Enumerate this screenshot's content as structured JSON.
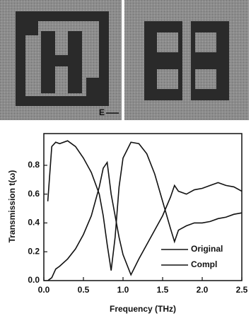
{
  "figure": {
    "field_label": "E"
  },
  "chart_data": {
    "type": "line",
    "xlabel": "Frequency (THz)",
    "ylabel": "Transmission  t(ω)",
    "x": [
      0.05,
      0.1,
      0.15,
      0.2,
      0.3,
      0.4,
      0.5,
      0.6,
      0.7,
      0.75,
      0.8,
      0.85,
      0.9,
      0.95,
      1.0,
      1.1,
      1.2,
      1.3,
      1.4,
      1.5,
      1.6,
      1.65,
      1.7,
      1.8,
      1.9,
      2.0,
      2.1,
      2.2,
      2.3,
      2.4,
      2.5
    ],
    "series": [
      {
        "name": "Original",
        "color": "#111111",
        "values": [
          0.55,
          0.93,
          0.96,
          0.95,
          0.97,
          0.93,
          0.85,
          0.75,
          0.6,
          0.45,
          0.25,
          0.07,
          0.3,
          0.65,
          0.85,
          0.96,
          0.95,
          0.88,
          0.74,
          0.55,
          0.36,
          0.27,
          0.35,
          0.38,
          0.4,
          0.4,
          0.41,
          0.43,
          0.44,
          0.46,
          0.47
        ]
      },
      {
        "name": "Compl",
        "color": "#111111",
        "values": [
          0.0,
          0.02,
          0.08,
          0.1,
          0.15,
          0.22,
          0.32,
          0.45,
          0.65,
          0.78,
          0.82,
          0.6,
          0.45,
          0.3,
          0.18,
          0.04,
          0.15,
          0.25,
          0.35,
          0.45,
          0.58,
          0.66,
          0.62,
          0.6,
          0.63,
          0.64,
          0.66,
          0.68,
          0.66,
          0.65,
          0.62
        ]
      }
    ],
    "xlim": [
      0,
      2.5
    ],
    "xticks": [
      {
        "value": 0,
        "label": "0.0"
      },
      0.5,
      {
        "value": 1,
        "label": "1.0"
      },
      1.5,
      {
        "value": 2,
        "label": "2.0"
      },
      2.5
    ],
    "ylim": [
      0,
      1.02
    ],
    "yticks": [
      {
        "value": 0,
        "label": "0.0"
      },
      0.2,
      0.4,
      0.6,
      0.8
    ],
    "grid": false,
    "legend": "lower-right"
  }
}
